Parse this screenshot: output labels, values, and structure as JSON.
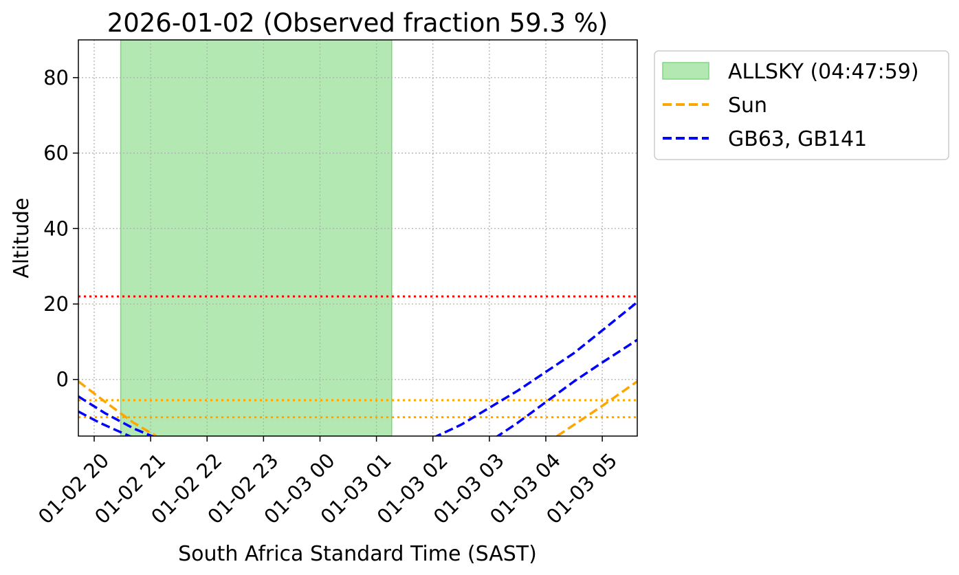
{
  "chart_data": {
    "type": "line",
    "title": "2026-01-02 (Observed fraction 59.3 %)",
    "xlabel": "South Africa Standard Time (SAST)",
    "ylabel": "Altitude",
    "x_unit": "hours",
    "xlim": [
      19.72,
      29.62
    ],
    "ylim": [
      -15,
      90
    ],
    "x_ticks": [
      {
        "value": 20,
        "label": "01-02 20"
      },
      {
        "value": 21,
        "label": "01-02 21"
      },
      {
        "value": 22,
        "label": "01-02 22"
      },
      {
        "value": 23,
        "label": "01-02 23"
      },
      {
        "value": 24,
        "label": "01-03 00"
      },
      {
        "value": 25,
        "label": "01-03 01"
      },
      {
        "value": 26,
        "label": "01-03 02"
      },
      {
        "value": 27,
        "label": "01-03 03"
      },
      {
        "value": 28,
        "label": "01-03 04"
      },
      {
        "value": 29,
        "label": "01-03 05"
      }
    ],
    "y_ticks": [
      {
        "value": 0,
        "label": "0"
      },
      {
        "value": 20,
        "label": "20"
      },
      {
        "value": 40,
        "label": "40"
      },
      {
        "value": 60,
        "label": "60"
      },
      {
        "value": 80,
        "label": "80"
      }
    ],
    "grid": true,
    "legend_position": "outside-top-right",
    "shaded_region": {
      "name": "ALLSKY (04:47:59)",
      "x_start": 20.47,
      "x_end": 25.27,
      "color": "#b3e8b3",
      "edge_color": "#7fd67f"
    },
    "series": [
      {
        "name": "Sun",
        "color": "#ffa500",
        "style": "dashed",
        "x": [
          19.72,
          20.2,
          20.7,
          21.1
        ],
        "y": [
          -0.5,
          -6.0,
          -11.5,
          -15.0
        ]
      },
      {
        "name": "Sun",
        "color": "#ffa500",
        "style": "dashed",
        "x": [
          28.2,
          28.6,
          29.0,
          29.62
        ],
        "y": [
          -15.0,
          -11.0,
          -7.0,
          -0.5
        ]
      },
      {
        "name": "GB63, GB141",
        "color": "#0000ff",
        "style": "dashed",
        "x": [
          19.72,
          20.2,
          20.7,
          21.1
        ],
        "y": [
          -4.5,
          -9.0,
          -13.0,
          -15.5
        ]
      },
      {
        "name": "GB63, GB141",
        "color": "#0000ff",
        "style": "dashed",
        "x": [
          19.72,
          20.1,
          20.4,
          20.7
        ],
        "y": [
          -8.5,
          -11.5,
          -13.5,
          -15.5
        ]
      },
      {
        "name": "GB63, GB141",
        "color": "#0000ff",
        "style": "dashed",
        "x": [
          26.0,
          26.5,
          27.0,
          27.5,
          28.0,
          28.5,
          29.0,
          29.62
        ],
        "y": [
          -15.5,
          -12.0,
          -7.5,
          -3.0,
          2.0,
          7.0,
          13.0,
          20.5
        ]
      },
      {
        "name": "GB63, GB141",
        "color": "#0000ff",
        "style": "dashed",
        "x": [
          27.1,
          27.5,
          28.0,
          28.5,
          29.0,
          29.62
        ],
        "y": [
          -15.5,
          -11.5,
          -6.0,
          -0.5,
          4.5,
          10.5
        ]
      }
    ],
    "reference_lines": [
      {
        "y": 22,
        "color": "#ff0000",
        "style": "dotted"
      },
      {
        "y": -5.5,
        "color": "#ffa500",
        "style": "dotted"
      },
      {
        "y": -10,
        "color": "#ffa500",
        "style": "dotted"
      }
    ],
    "legend": [
      {
        "label": "ALLSKY (04:47:59)",
        "kind": "patch",
        "color": "#b3e8b3",
        "edge_color": "#7fd67f"
      },
      {
        "label": "Sun",
        "kind": "line",
        "color": "#ffa500"
      },
      {
        "label": "GB63, GB141",
        "kind": "line",
        "color": "#0000ff"
      }
    ]
  }
}
